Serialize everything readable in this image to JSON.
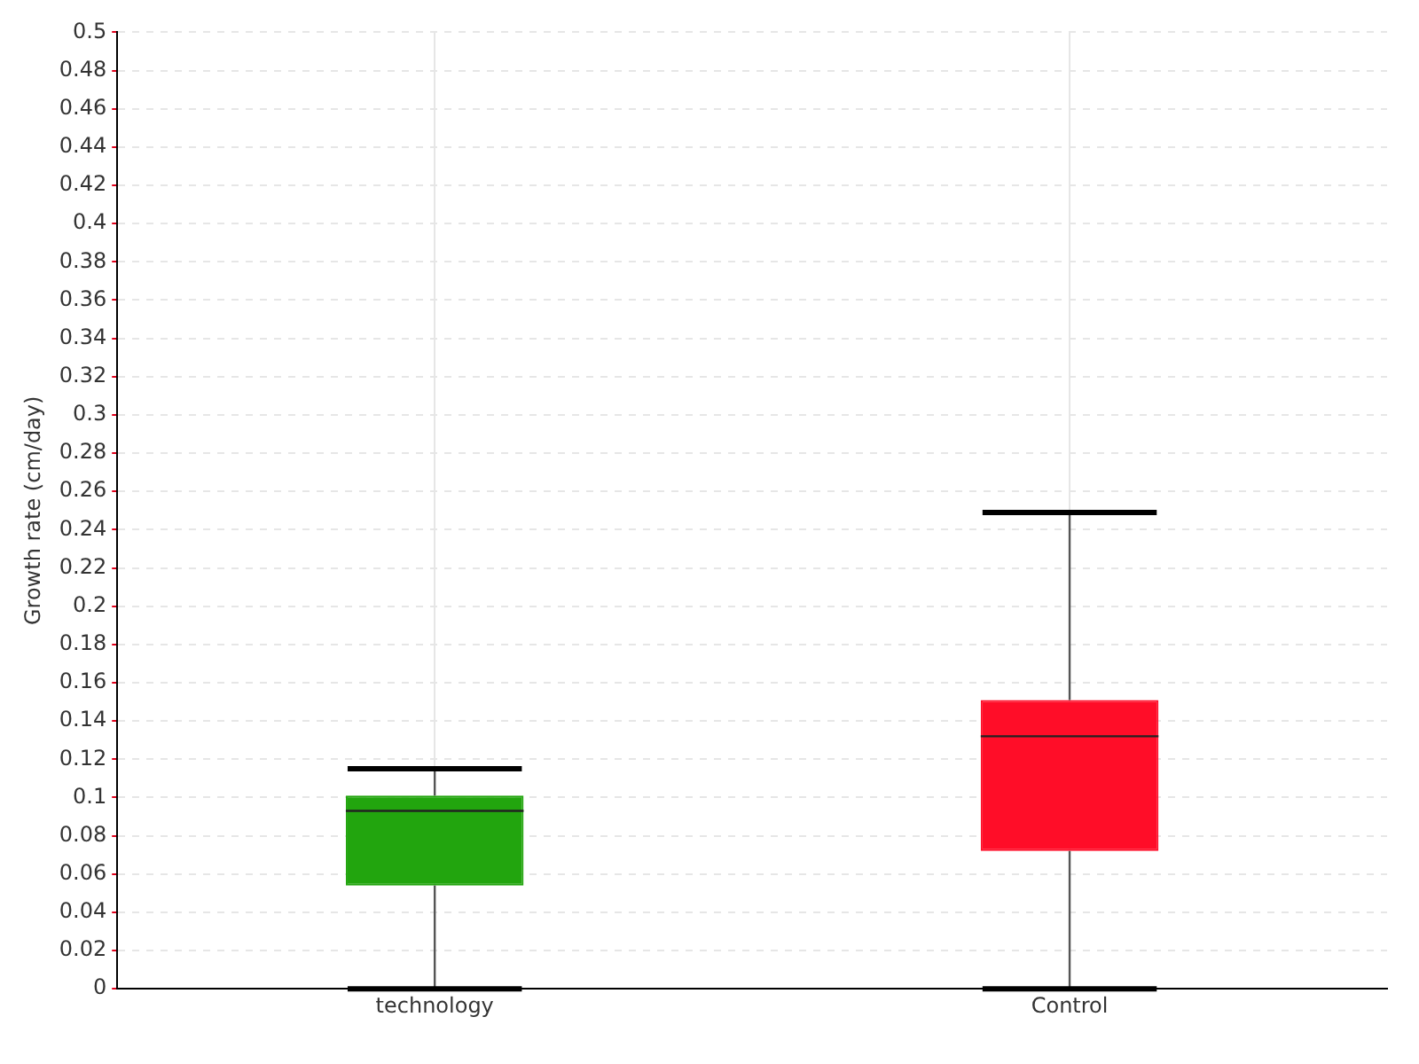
{
  "chart_data": {
    "type": "box",
    "ylabel": "Growth rate (cm/day)",
    "categories": [
      "technology",
      "Control"
    ],
    "colors": [
      "#22a50e",
      "#ff0d28"
    ],
    "boxes": [
      {
        "low": 0,
        "q1": 0.054,
        "median": 0.093,
        "q3": 0.101,
        "high": 0.115
      },
      {
        "low": 0,
        "q1": 0.072,
        "median": 0.132,
        "q3": 0.151,
        "high": 0.249
      }
    ],
    "ylim": [
      0,
      0.5
    ],
    "yticks": [
      0,
      0.02,
      0.04,
      0.06,
      0.08,
      0.1,
      0.12,
      0.14,
      0.16,
      0.18,
      0.2,
      0.22,
      0.24,
      0.26,
      0.28,
      0.3,
      0.32,
      0.34,
      0.36,
      0.38,
      0.4,
      0.42,
      0.44,
      0.46,
      0.48,
      0.5
    ],
    "grid": true
  }
}
